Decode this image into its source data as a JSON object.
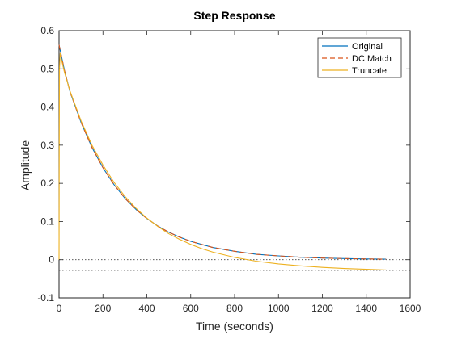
{
  "chart_data": {
    "type": "line",
    "title": "Step Response",
    "xlabel": "Time (seconds)",
    "ylabel": "Amplitude",
    "xlim": [
      0,
      1600
    ],
    "ylim": [
      -0.1,
      0.6
    ],
    "xticks": [
      0,
      200,
      400,
      600,
      800,
      1000,
      1200,
      1400,
      1600
    ],
    "yticks": [
      -0.1,
      0,
      0.1,
      0.2,
      0.3,
      0.4,
      0.5,
      0.6
    ],
    "xtick_labels": [
      "0",
      "200",
      "400",
      "600",
      "800",
      "1000",
      "1200",
      "1400",
      "1600"
    ],
    "ytick_labels": [
      "-0.1",
      "0",
      "0.1",
      "0.2",
      "0.3",
      "0.4",
      "0.5",
      "0.6"
    ],
    "grid": false,
    "legend_position": "top-right",
    "reference_lines": [
      {
        "y": 0,
        "style": "dotted",
        "color": "#404040"
      },
      {
        "y": -0.028,
        "style": "dotted",
        "color": "#404040"
      }
    ],
    "series": [
      {
        "name": "Original",
        "color": "#0072BD",
        "dash": "solid",
        "x": [
          0,
          25,
          50,
          100,
          150,
          200,
          250,
          300,
          350,
          400,
          450,
          500,
          550,
          600,
          650,
          700,
          800,
          900,
          1000,
          1100,
          1200,
          1300,
          1400,
          1490
        ],
        "y": [
          0.563,
          0.495,
          0.44,
          0.36,
          0.294,
          0.241,
          0.197,
          0.161,
          0.132,
          0.108,
          0.088,
          0.072,
          0.059,
          0.048,
          0.04,
          0.032,
          0.022,
          0.014,
          0.01,
          0.0065,
          0.0043,
          0.0029,
          0.0019,
          0.0013
        ]
      },
      {
        "name": "DC Match",
        "color": "#D95319",
        "dash": "dashed",
        "x": [
          0,
          25,
          50,
          100,
          150,
          200,
          250,
          300,
          350,
          400,
          450,
          500,
          550,
          600,
          650,
          700,
          800,
          900,
          1000,
          1100,
          1200,
          1300,
          1400,
          1490
        ],
        "y": [
          0.563,
          0.495,
          0.44,
          0.36,
          0.294,
          0.241,
          0.197,
          0.161,
          0.132,
          0.108,
          0.088,
          0.072,
          0.059,
          0.048,
          0.04,
          0.032,
          0.022,
          0.014,
          0.01,
          0.0065,
          0.0043,
          0.0029,
          0.0019,
          0.0013
        ]
      },
      {
        "name": "Truncate",
        "color": "#EDB120",
        "dash": "solid",
        "x": [
          0,
          1,
          2,
          5,
          25,
          50,
          100,
          150,
          200,
          250,
          300,
          350,
          400,
          450,
          500,
          550,
          600,
          650,
          700,
          800,
          900,
          1000,
          1100,
          1200,
          1300,
          1400,
          1490
        ],
        "y": [
          0,
          0.3,
          0.5,
          0.54,
          0.49,
          0.442,
          0.364,
          0.3,
          0.248,
          0.203,
          0.166,
          0.135,
          0.109,
          0.087,
          0.068,
          0.053,
          0.04,
          0.029,
          0.02,
          0.006,
          -0.004,
          -0.011,
          -0.016,
          -0.02,
          -0.023,
          -0.025,
          -0.027
        ]
      }
    ]
  }
}
